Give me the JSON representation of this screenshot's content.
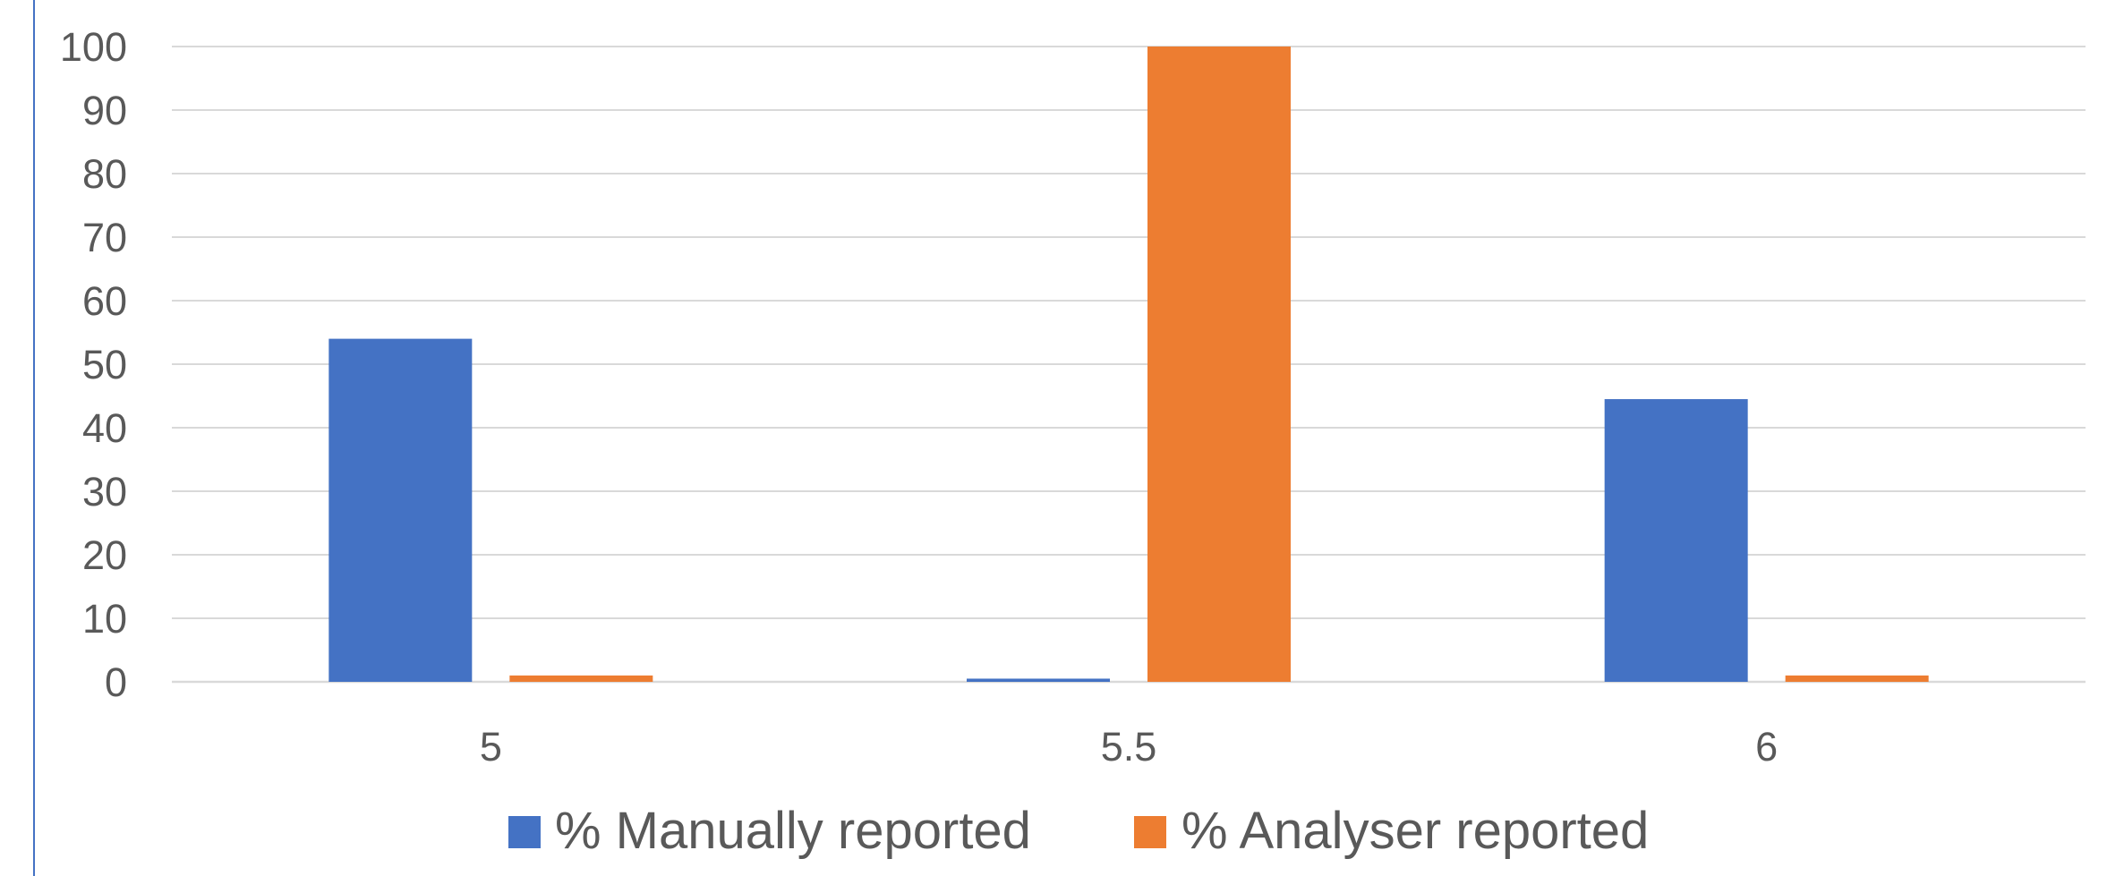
{
  "chart_data": {
    "type": "bar",
    "categories": [
      "5",
      "5.5",
      "6"
    ],
    "series": [
      {
        "name": "% Manually reported",
        "values": [
          54,
          0.5,
          44.5
        ],
        "color": "#4472c4"
      },
      {
        "name": "% Analyser reported",
        "values": [
          1,
          100,
          1
        ],
        "color": "#ed7d31"
      }
    ],
    "yticks": [
      "0",
      "10",
      "20",
      "30",
      "40",
      "50",
      "60",
      "70",
      "80",
      "90",
      "100"
    ],
    "ylim": [
      0,
      100
    ],
    "grid": true,
    "legend_position": "bottom"
  },
  "colors": {
    "gridline": "#d9d9d9",
    "text": "#595959",
    "left_rule": "#4472c4"
  }
}
